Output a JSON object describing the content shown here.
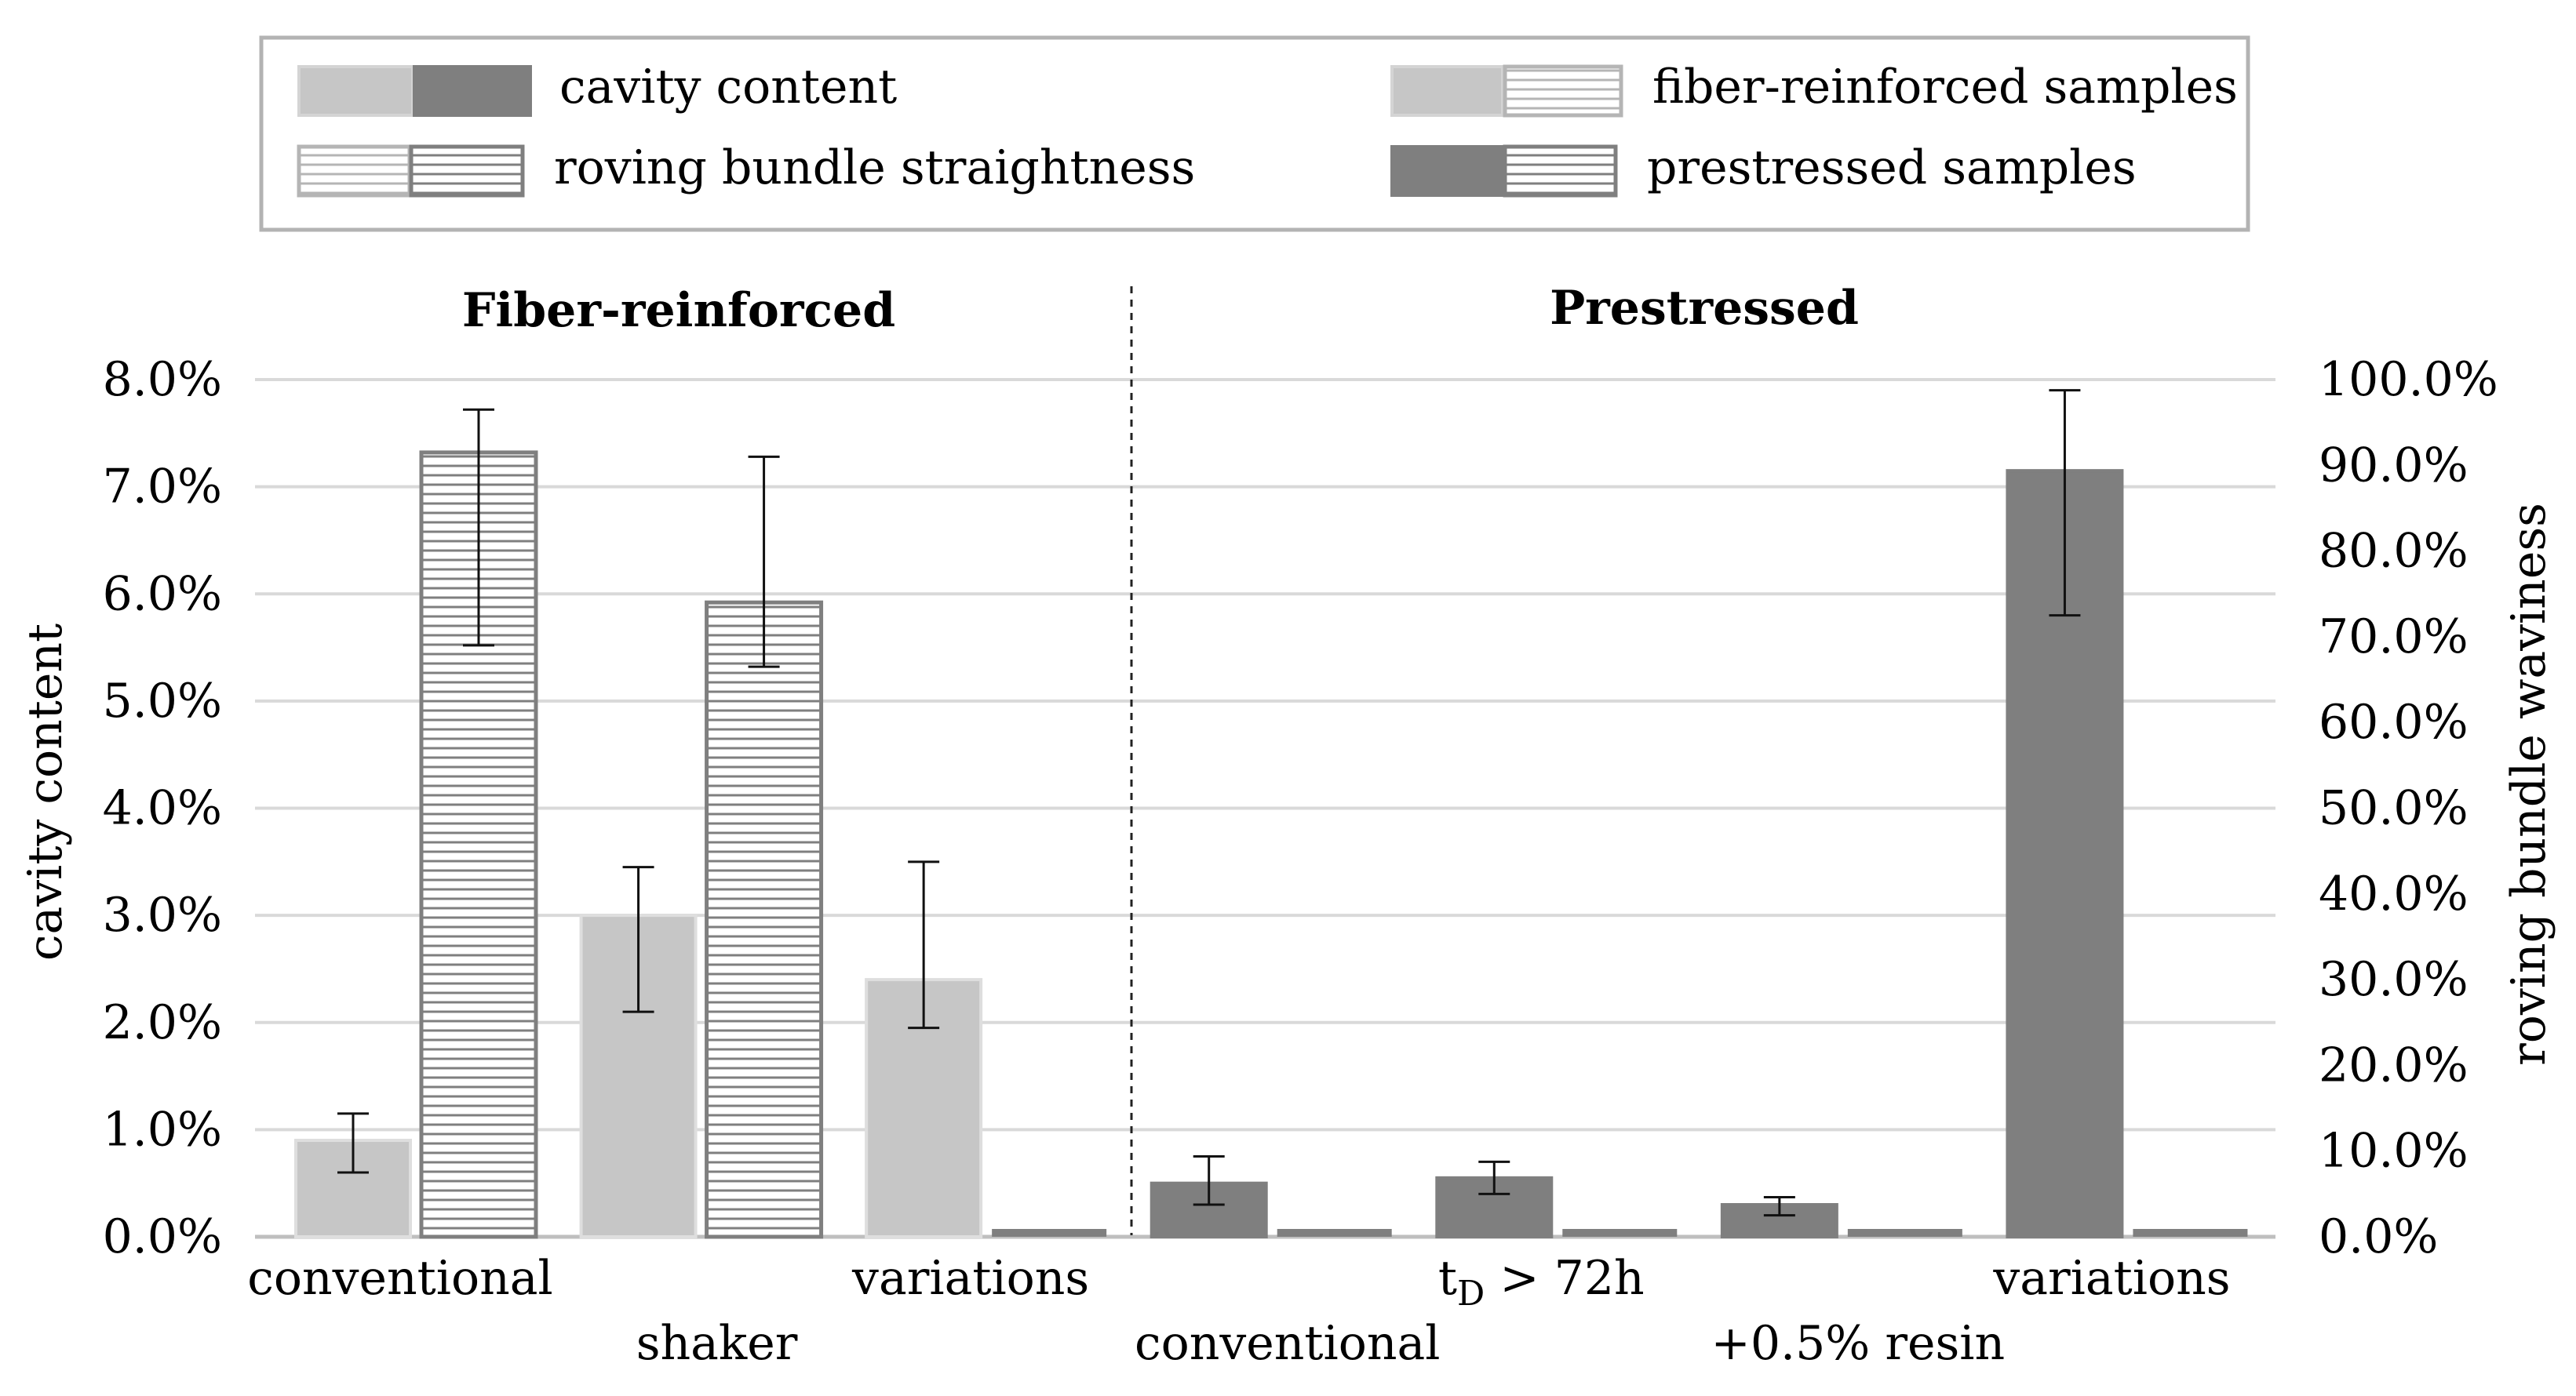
{
  "chart_data": {
    "type": "bar",
    "legend": {
      "placement": "top",
      "entries": [
        {
          "key": "cavity",
          "label": "cavity content"
        },
        {
          "key": "fiber",
          "label": "fiber-reinforced samples"
        },
        {
          "key": "straight",
          "label": "roving bundle straightness"
        },
        {
          "key": "prestressed",
          "label": "prestressed samples"
        }
      ]
    },
    "panels": [
      {
        "title": "Fiber-reinforced"
      },
      {
        "title": "Prestressed"
      }
    ],
    "left_axis": {
      "label": "cavity content",
      "range": [
        0,
        8
      ],
      "ticks": [
        0,
        1,
        2,
        3,
        4,
        5,
        6,
        7,
        8
      ],
      "tick_labels": [
        "0.0%",
        "1.0%",
        "2.0%",
        "3.0%",
        "4.0%",
        "5.0%",
        "6.0%",
        "7.0%",
        "8.0%"
      ]
    },
    "right_axis": {
      "label": "roving bundle waviness",
      "range": [
        0,
        100
      ],
      "ticks": [
        0,
        10,
        20,
        30,
        40,
        50,
        60,
        70,
        80,
        90,
        100
      ],
      "tick_labels": [
        "0.0%",
        "10.0%",
        "20.0%",
        "30.0%",
        "40.0%",
        "50.0%",
        "60.0%",
        "70.0%",
        "80.0%",
        "90.0%",
        "100.0%"
      ]
    },
    "categories": [
      {
        "label": "conventional",
        "group": "Fiber-reinforced",
        "row": 1
      },
      {
        "label": "shaker",
        "group": "Fiber-reinforced",
        "row": 2
      },
      {
        "label": "variations",
        "group": "Fiber-reinforced",
        "row": 1
      },
      {
        "label": "conventional",
        "group": "Prestressed",
        "row": 2
      },
      {
        "label": "> 72h",
        "sub_main": "t",
        "sub_index": "D",
        "group": "Prestressed",
        "row": 1
      },
      {
        "label": "+0.5% resin",
        "group": "Prestressed",
        "row": 2
      },
      {
        "label": "variations",
        "group": "Prestressed",
        "row": 1
      }
    ],
    "series": [
      {
        "name": "cavity content",
        "axis": "left",
        "values": [
          0.9,
          3.0,
          2.4,
          0.5,
          0.55,
          0.3,
          7.15
        ],
        "err_low": [
          0.6,
          2.1,
          1.95,
          0.3,
          0.4,
          0.2,
          5.8
        ],
        "err_high": [
          1.15,
          3.45,
          3.5,
          0.75,
          0.7,
          0.37,
          7.9
        ]
      },
      {
        "name": "roving bundle straightness",
        "axis": "right",
        "values": [
          91.5,
          74.0,
          0,
          0,
          0,
          0,
          0
        ],
        "err_low": [
          69.0,
          66.5,
          null,
          null,
          null,
          null,
          null
        ],
        "err_high": [
          96.5,
          91.0,
          null,
          null,
          null,
          null,
          null
        ]
      }
    ],
    "colors": {
      "fiber_fill": "#c6c6c6",
      "fiber_edge": "#dedede",
      "prestressed_fill": "#7f7f7f",
      "hatch_line": "#7f7f7f",
      "grid": "#d9d9d9"
    }
  }
}
